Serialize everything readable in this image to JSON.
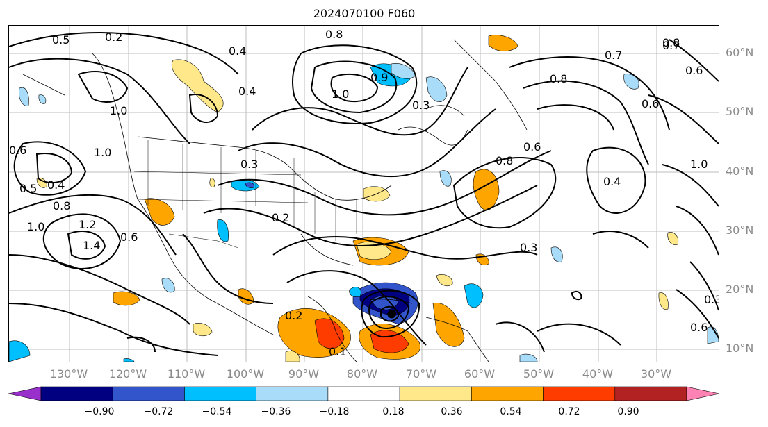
{
  "title": "2024070100 F060",
  "latitude_labels": [
    "60°N",
    "50°N",
    "40°N",
    "30°N",
    "20°N",
    "10°N"
  ],
  "longitude_labels": [
    "130°W",
    "120°W",
    "110°W",
    "100°W",
    "90°W",
    "80°W",
    "70°W",
    "60°W",
    "50°W",
    "40°W",
    "30°W"
  ],
  "colorbar": {
    "tick_labels": [
      "−0.90",
      "−0.72",
      "−0.54",
      "−0.36",
      "−0.18",
      "0.18",
      "0.36",
      "0.54",
      "0.72",
      "0.90"
    ],
    "colors": [
      "#9a30cc",
      "#000080",
      "#3355cc",
      "#00bfff",
      "#a8dcf8",
      "#ffffff",
      "#ffe88a",
      "#ffa500",
      "#ff3c00",
      "#b22222",
      "#ff82b4"
    ],
    "extend": "both"
  },
  "contour_labels": [
    "0.5",
    "0.2",
    "0.8",
    "0.4",
    "0.7",
    "0.8",
    "0.7",
    "0.6",
    "0.4",
    "1.0",
    "0.9",
    "0.3",
    "0.8",
    "0.6",
    "1.0",
    "0.6",
    "0.5",
    "0.4",
    "0.8",
    "0.3",
    "0.8",
    "0.6",
    "0.4",
    "1.0",
    "0.2",
    "1.0",
    "1.2",
    "1.4",
    "0.6",
    "0.2",
    "0.3",
    "0.3",
    "0.1",
    "0.6",
    "1.0"
  ]
}
